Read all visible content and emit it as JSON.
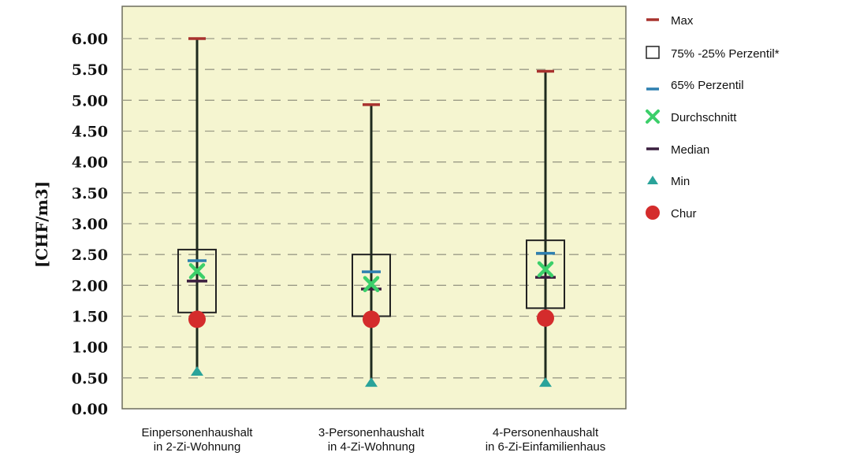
{
  "chart_data": {
    "type": "boxplot",
    "ylabel": "[CHF/m3]",
    "ylim": [
      0,
      6
    ],
    "ytick_step": 0.5,
    "ytick_labels": [
      "0.00",
      "0.50",
      "1.00",
      "1.50",
      "2.00",
      "2.50",
      "3.00",
      "3.50",
      "4.00",
      "4.50",
      "5.00",
      "5.50",
      "6.00"
    ],
    "grid": "horizontal dashed",
    "legend_position": "right",
    "categories": [
      {
        "line1": "Einpersonenhaushalt",
        "line2": "in 2-Zi-Wohnung"
      },
      {
        "line1": "3-Personenhaushalt",
        "line2": "in 4-Zi-Wohnung"
      },
      {
        "line1": "4-Personenhaushalt",
        "line2": "in 6-Zi-Einfamilienhaus"
      }
    ],
    "series": {
      "Max": [
        6.0,
        4.93,
        5.47
      ],
      "Perzentil_75": [
        2.58,
        2.5,
        2.73
      ],
      "Perzentil_25": [
        1.56,
        1.5,
        1.63
      ],
      "Perzentil_65": [
        2.4,
        2.22,
        2.52
      ],
      "Durchschnitt": [
        2.23,
        2.02,
        2.26
      ],
      "Median": [
        2.07,
        1.94,
        2.13
      ],
      "Min": [
        0.6,
        0.42,
        0.42
      ],
      "Chur": [
        1.45,
        1.45,
        1.47
      ]
    },
    "legend": [
      {
        "key": "max",
        "label": "Max",
        "color": "#a8322e"
      },
      {
        "key": "box",
        "label": "75% -25% Perzentil*",
        "color": "#222222"
      },
      {
        "key": "p65",
        "label": "65% Perzentil",
        "color": "#2e7fb0"
      },
      {
        "key": "mean",
        "label": "Durchschnitt",
        "color": "#3ccf6a"
      },
      {
        "key": "median",
        "label": "Median",
        "color": "#3a1f3f"
      },
      {
        "key": "min",
        "label": "Min",
        "color": "#2aa39a"
      },
      {
        "key": "chur",
        "label": "Chur",
        "color": "#d42c2c"
      }
    ],
    "colors": {
      "plot_background": "#f5f5d0",
      "whisker": "#1e2a1e",
      "grid": "#9a9a86"
    }
  }
}
